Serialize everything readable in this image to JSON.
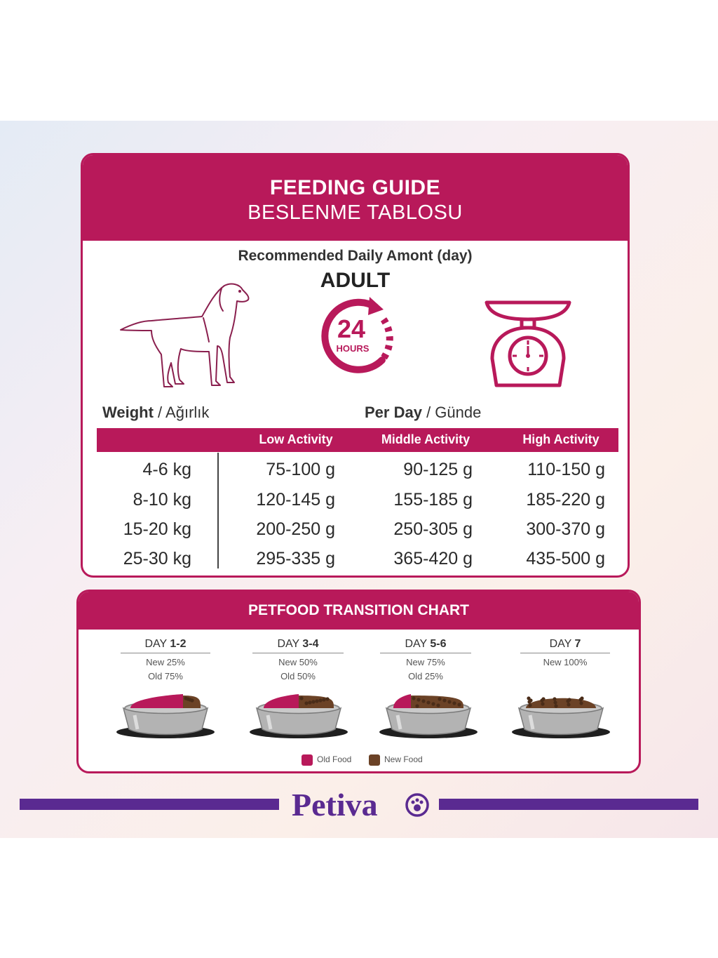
{
  "header": {
    "title": "FEEDING GUIDE",
    "subtitle": "BESLENME TABLOSU"
  },
  "recommended": "Recommended Daily Amont (day)",
  "life_stage": "ADULT",
  "clock": {
    "number": "24",
    "unit": "HOURS"
  },
  "icons": [
    "dog-icon",
    "clock-24-icon",
    "scale-icon"
  ],
  "weight_label": {
    "en": "Weight",
    "tr": "Ağırlık"
  },
  "per_day_label": {
    "en": "Per Day",
    "tr": "Günde"
  },
  "table": {
    "columns": [
      "Low Activity",
      "Middle Activity",
      "High Activity"
    ],
    "rows": [
      {
        "weight": "4-6 kg",
        "low": "75-100 g",
        "mid": "90-125 g",
        "high": "110-150 g"
      },
      {
        "weight": "8-10 kg",
        "low": "120-145 g",
        "mid": "155-185 g",
        "high": "185-220 g"
      },
      {
        "weight": "15-20 kg",
        "low": "200-250 g",
        "mid": "250-305 g",
        "high": "300-370 g"
      },
      {
        "weight": "25-30 kg",
        "low": "295-335 g",
        "mid": "365-420 g",
        "high": "435-500 g"
      }
    ]
  },
  "transition": {
    "title": "PETFOOD TRANSITION CHART",
    "days": [
      {
        "prefix": "DAY",
        "range": "1-2",
        "new": "New 25%",
        "old": "Old 75%",
        "new_fraction": 0.25
      },
      {
        "prefix": "DAY",
        "range": "3-4",
        "new": "New 50%",
        "old": "Old 50%",
        "new_fraction": 0.5
      },
      {
        "prefix": "DAY",
        "range": "5-6",
        "new": "New 75%",
        "old": "Old 25%",
        "new_fraction": 0.75
      },
      {
        "prefix": "DAY",
        "range": "7",
        "new": "New 100%",
        "old": "",
        "new_fraction": 1.0
      }
    ],
    "legend": {
      "old": "Old Food",
      "new": "New Food"
    }
  },
  "colors": {
    "brand": "#b8195a",
    "logo": "#5a2a91",
    "kibble": "#6b4226"
  },
  "brand": {
    "name": "Petiva"
  }
}
